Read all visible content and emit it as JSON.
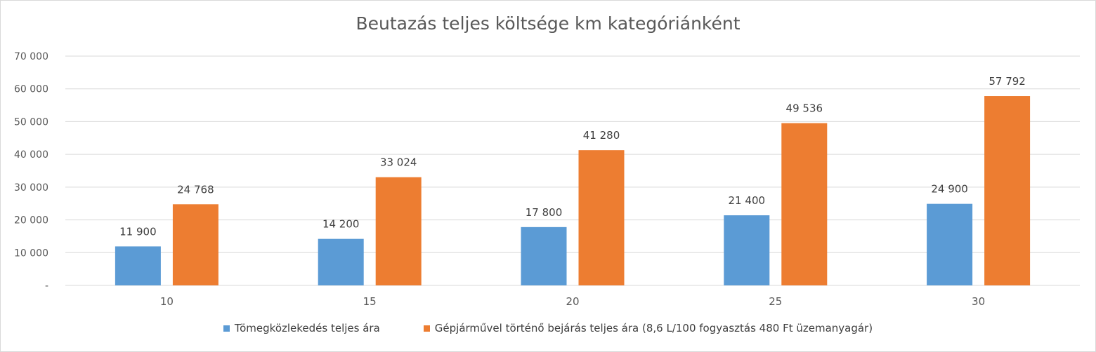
{
  "chart_data": {
    "type": "bar",
    "title": "Beutazás teljes költsége km kategóriánként",
    "xlabel": "",
    "ylabel": "",
    "categories": [
      "10",
      "15",
      "20",
      "25",
      "30"
    ],
    "series": [
      {
        "name": "Tömegközlekedés teljes ára",
        "color": "#5b9bd5",
        "values": [
          11900,
          14200,
          17800,
          21400,
          24900
        ],
        "labels": [
          "11 900",
          "14 200",
          "17 800",
          "21 400",
          "24 900"
        ]
      },
      {
        "name": "Gépjárművel történő bejárás teljes ára (8,6 L/100 fogyasztás 480 Ft üzemanyagár)",
        "color": "#ed7d31",
        "values": [
          24768,
          33024,
          41280,
          49536,
          57792
        ],
        "labels": [
          "24 768",
          "33 024",
          "41 280",
          "49 536",
          "57 792"
        ]
      }
    ],
    "ylim": [
      0,
      70000
    ],
    "yticks": [
      0,
      10000,
      20000,
      30000,
      40000,
      50000,
      60000,
      70000
    ],
    "ytick_labels": [
      "-",
      "10 000",
      "20 000",
      "30 000",
      "40 000",
      "50 000",
      "60 000",
      "70 000"
    ],
    "grid": true,
    "legend_position": "bottom",
    "gridline_color": "#d9d9d9",
    "text_color": "#595959"
  }
}
